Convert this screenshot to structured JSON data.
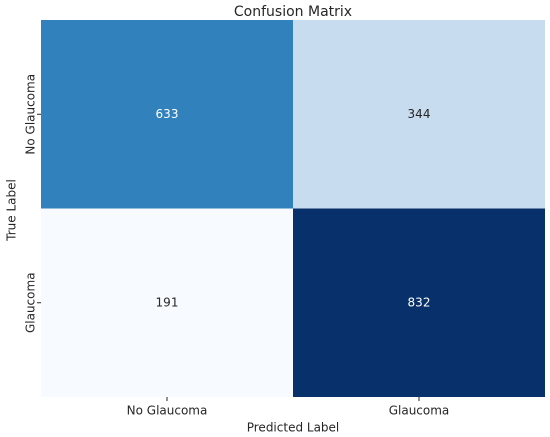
{
  "chart_data": {
    "type": "heatmap",
    "title": "Confusion Matrix",
    "x_label": "Predicted Label",
    "y_label": "True Label",
    "x_categories": [
      "No Glaucoma",
      "Glaucoma"
    ],
    "y_categories": [
      "No Glaucoma",
      "Glaucoma"
    ],
    "values": [
      [
        633,
        344
      ],
      [
        191,
        832
      ]
    ],
    "colormap": [
      "#f7fbff",
      "#deebf7",
      "#c6dbef",
      "#9ecae1",
      "#6baed6",
      "#4292c6",
      "#2171b5",
      "#08519c",
      "#08306b"
    ]
  }
}
